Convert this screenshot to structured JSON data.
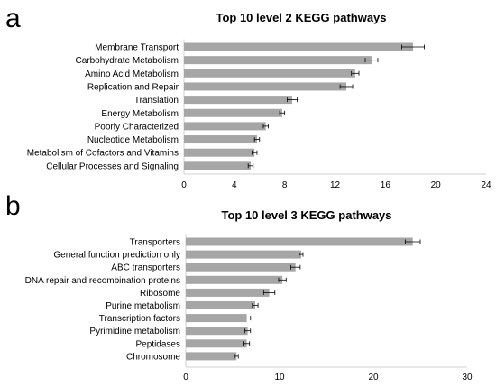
{
  "chart_data": [
    {
      "panel": "a",
      "type": "bar",
      "orientation": "horizontal",
      "title": "Top 10 level 2 KEGG pathways",
      "categories": [
        "Membrane Transport",
        "Carbohydrate Metabolism",
        "Amino Acid Metabolism",
        "Replication and Repair",
        "Translation",
        "Energy Metabolism",
        "Poorly Characterized",
        "Nucleotide Metabolism",
        "Metabolism of Cofactors and Vitamins",
        "Cellular Processes and Signaling"
      ],
      "values": [
        18.2,
        14.9,
        13.6,
        12.9,
        8.6,
        7.8,
        6.5,
        5.8,
        5.6,
        5.3
      ],
      "errors": [
        0.9,
        0.5,
        0.3,
        0.5,
        0.4,
        0.2,
        0.2,
        0.2,
        0.2,
        0.2
      ],
      "xlim": [
        0,
        24
      ],
      "xticks": [
        0,
        4,
        8,
        12,
        16,
        20,
        24
      ],
      "grid": false,
      "color": "#a6a6a6"
    },
    {
      "panel": "b",
      "type": "bar",
      "orientation": "horizontal",
      "title": "Top 10 level 3 KEGG pathways",
      "categories": [
        "Transporters",
        "General function prediction only",
        "ABC transporters",
        "DNA repair and recombination proteins",
        "Ribosome",
        "Purine metabolism",
        "Transcription factors",
        "Pyrimidine metabolism",
        "Peptidases",
        "Chromosome"
      ],
      "values": [
        24.2,
        12.3,
        11.7,
        10.3,
        8.9,
        7.4,
        6.5,
        6.6,
        6.5,
        5.4
      ],
      "errors": [
        0.8,
        0.2,
        0.5,
        0.4,
        0.6,
        0.3,
        0.4,
        0.3,
        0.3,
        0.2
      ],
      "xlim": [
        0,
        30
      ],
      "xticks": [
        0,
        10,
        20,
        30
      ],
      "grid": false,
      "color": "#a6a6a6"
    }
  ]
}
